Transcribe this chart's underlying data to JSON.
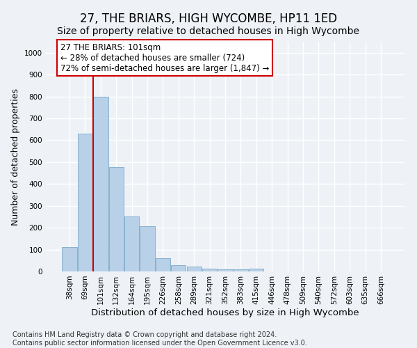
{
  "title": "27, THE BRIARS, HIGH WYCOMBE, HP11 1ED",
  "subtitle": "Size of property relative to detached houses in High Wycombe",
  "xlabel": "Distribution of detached houses by size in High Wycombe",
  "ylabel": "Number of detached properties",
  "categories": [
    "38sqm",
    "69sqm",
    "101sqm",
    "132sqm",
    "164sqm",
    "195sqm",
    "226sqm",
    "258sqm",
    "289sqm",
    "321sqm",
    "352sqm",
    "383sqm",
    "415sqm",
    "446sqm",
    "478sqm",
    "509sqm",
    "540sqm",
    "572sqm",
    "603sqm",
    "635sqm",
    "666sqm"
  ],
  "values": [
    110,
    630,
    800,
    478,
    252,
    207,
    62,
    28,
    22,
    13,
    8,
    8,
    13,
    0,
    0,
    0,
    0,
    0,
    0,
    0,
    0
  ],
  "bar_color": "#b8d0e8",
  "bar_edgecolor": "#7aaac8",
  "highlight_index": 2,
  "highlight_line_color": "#cc0000",
  "annotation_text": "27 THE BRIARS: 101sqm\n← 28% of detached houses are smaller (724)\n72% of semi-detached houses are larger (1,847) →",
  "annotation_box_facecolor": "#ffffff",
  "annotation_box_edgecolor": "#cc0000",
  "ylim": [
    0,
    1050
  ],
  "yticks": [
    0,
    100,
    200,
    300,
    400,
    500,
    600,
    700,
    800,
    900,
    1000
  ],
  "footer_text": "Contains HM Land Registry data © Crown copyright and database right 2024.\nContains public sector information licensed under the Open Government Licence v3.0.",
  "background_color": "#eef2f7",
  "grid_color": "#ffffff",
  "title_fontsize": 12,
  "subtitle_fontsize": 10,
  "xlabel_fontsize": 9.5,
  "ylabel_fontsize": 9,
  "tick_fontsize": 7.5,
  "annotation_fontsize": 8.5,
  "footer_fontsize": 7
}
